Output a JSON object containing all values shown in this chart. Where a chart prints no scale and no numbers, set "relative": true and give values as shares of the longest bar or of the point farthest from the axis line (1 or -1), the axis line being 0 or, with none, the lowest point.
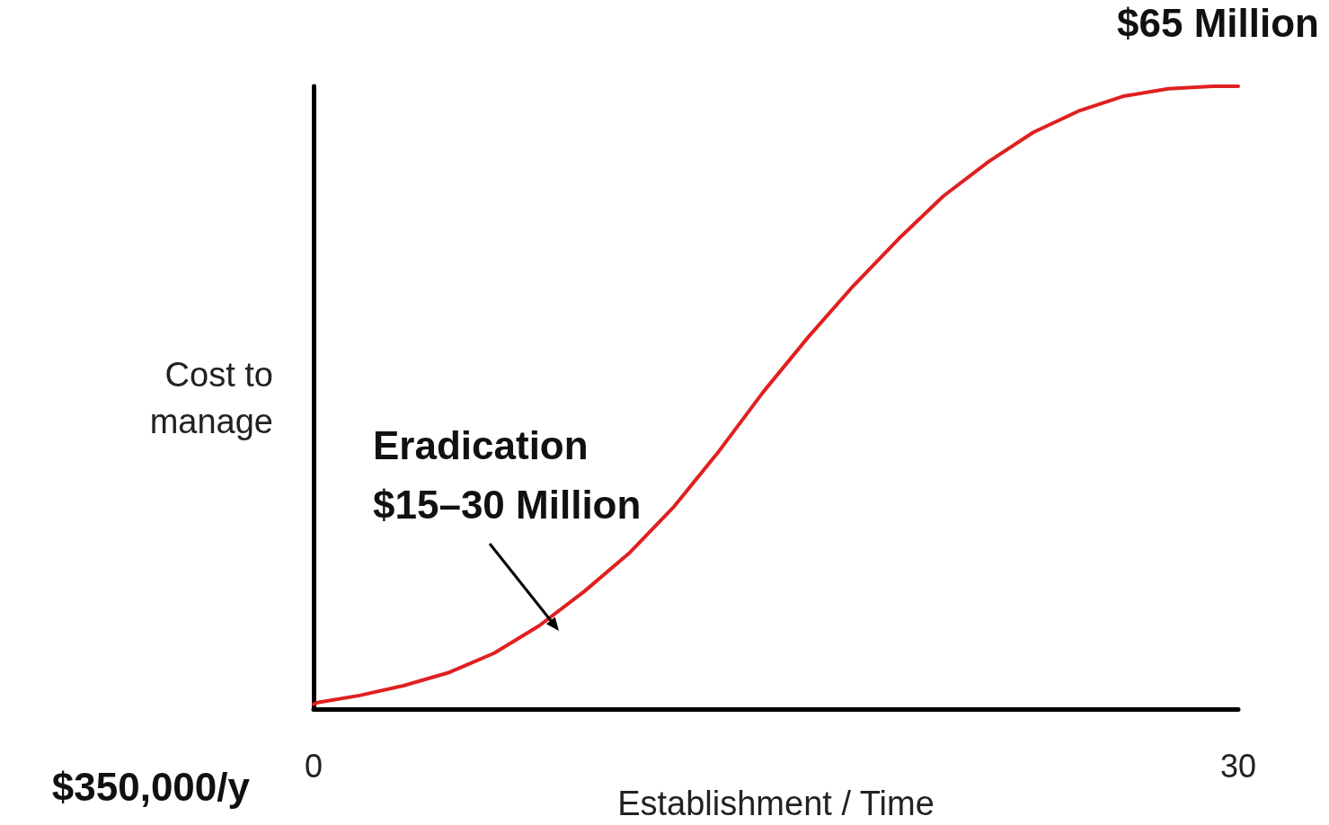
{
  "chart_data": {
    "type": "line",
    "relative": true,
    "xlabel": "Establishment / Time",
    "ylabel": "Cost to\nmanage",
    "xlim": [
      0,
      30
    ],
    "xticks": [
      0,
      30
    ],
    "tick_labels": "x",
    "grid": false,
    "marker": "none",
    "line_style": "solid",
    "annotations": [
      "$65 Million",
      "$350,000/y",
      "Eradication\n$15–30 Million"
    ],
    "series": [
      {
        "color": "#e02020",
        "x": [
          0,
          0.17,
          1.49,
          2.94,
          4.4,
          5.86,
          7.32,
          8.78,
          10.23,
          11.69,
          13.15,
          14.6,
          16.06,
          17.52,
          18.98,
          20.44,
          21.9,
          23.35,
          24.81,
          26.27,
          27.73,
          29.18,
          30
        ],
        "values": [
          0.008,
          0.011,
          0.022,
          0.038,
          0.059,
          0.09,
          0.134,
          0.189,
          0.25,
          0.325,
          0.414,
          0.51,
          0.598,
          0.68,
          0.755,
          0.824,
          0.879,
          0.926,
          0.96,
          0.984,
          0.996,
          1,
          1
        ]
      }
    ]
  }
}
